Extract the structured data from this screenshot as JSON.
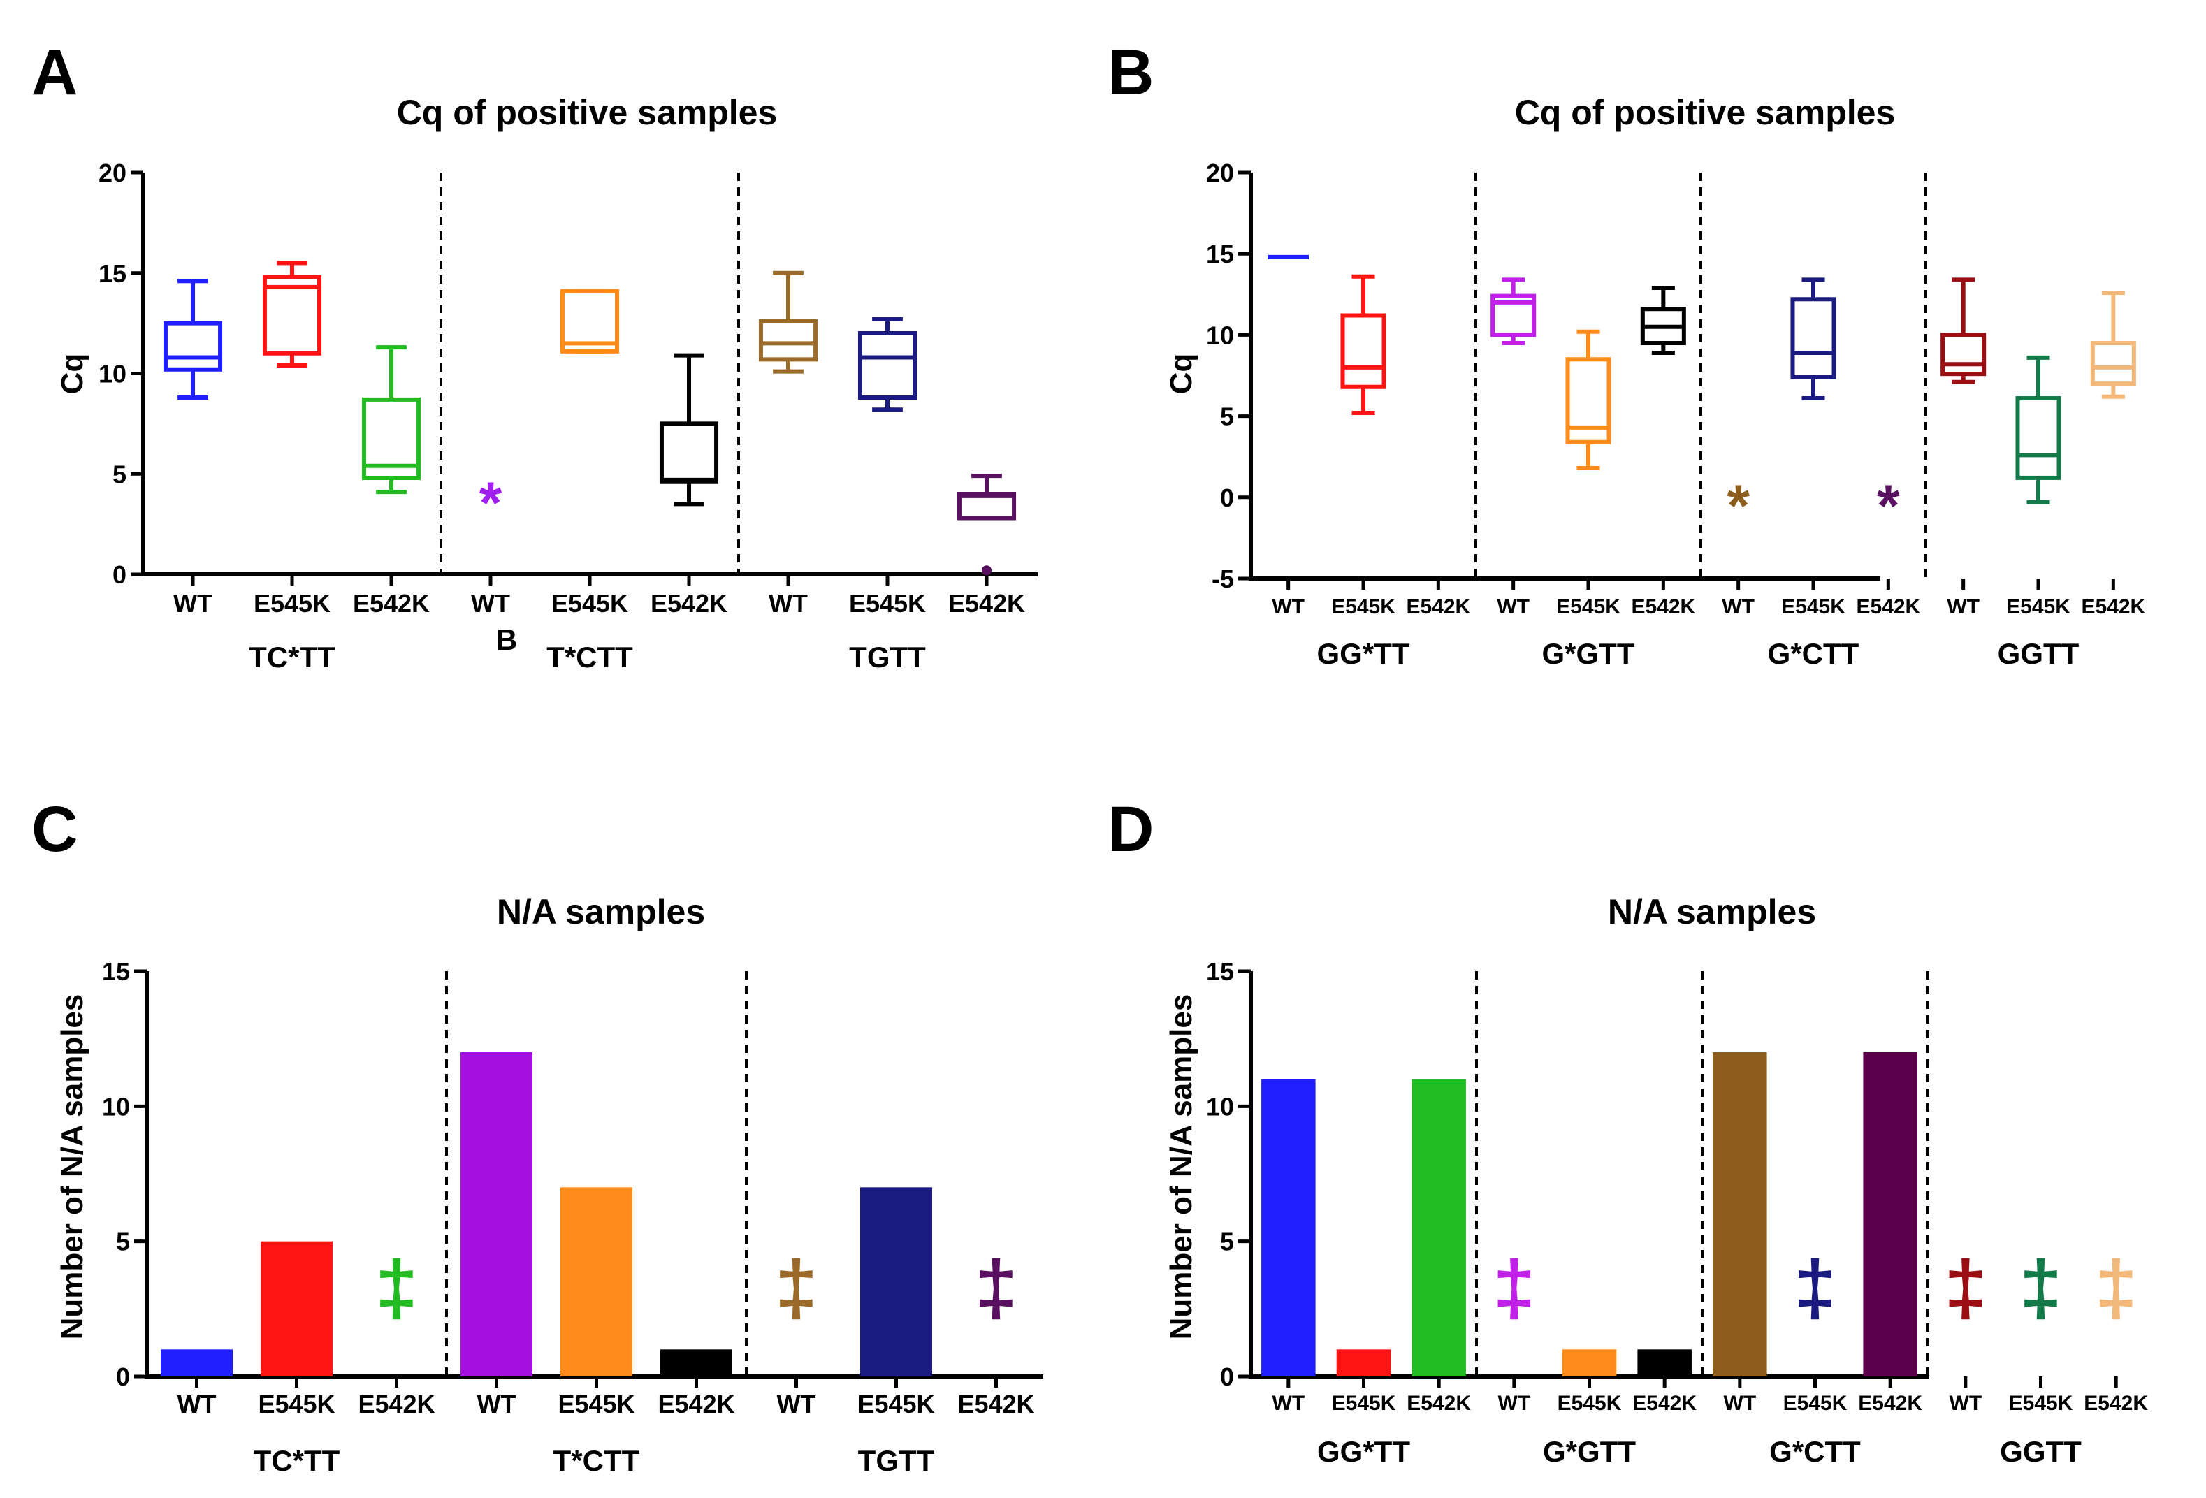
{
  "chart_data": [
    {
      "panel": "A",
      "type": "box",
      "title": "Cq of positive samples",
      "ylabel": "Cq",
      "ylim": [
        0,
        20
      ],
      "yticks": [
        0,
        5,
        10,
        15,
        20
      ],
      "groups": [
        {
          "label": "TC*TT",
          "items": [
            {
              "label": "WT",
              "color": "#1f1fff",
              "box": {
                "min": 8.8,
                "q1": 10.2,
                "median": 10.8,
                "q3": 12.5,
                "max": 14.6
              }
            },
            {
              "label": "E545K",
              "color": "#ff1414",
              "box": {
                "min": 10.4,
                "q1": 11.0,
                "median": 14.3,
                "q3": 14.8,
                "max": 15.5
              }
            },
            {
              "label": "E542K",
              "color": "#22bb22",
              "box": {
                "min": 4.1,
                "q1": 4.8,
                "median": 5.4,
                "q3": 8.7,
                "max": 11.3
              }
            }
          ]
        },
        {
          "label": "T*CTT",
          "items": [
            {
              "label": "WT",
              "color": "#a020f0",
              "marker": {
                "symbol": "*",
                "y": 4.3
              }
            },
            {
              "label": "E545K",
              "color": "#ff8c1a",
              "box": {
                "min": 11.1,
                "q1": 11.1,
                "median": 11.5,
                "q3": 14.1,
                "max": 14.1
              }
            },
            {
              "label": "E542K",
              "color": "#000000",
              "box": {
                "min": 3.5,
                "q1": 4.6,
                "median": 4.7,
                "q3": 7.5,
                "max": 10.9
              }
            }
          ]
        },
        {
          "label": "TGTT",
          "items": [
            {
              "label": "WT",
              "color": "#9a6a2a",
              "box": {
                "min": 10.1,
                "q1": 10.7,
                "median": 11.5,
                "q3": 12.6,
                "max": 15.0
              }
            },
            {
              "label": "E545K",
              "color": "#1a1a80",
              "box": {
                "min": 8.2,
                "q1": 8.8,
                "median": 10.8,
                "q3": 12.0,
                "max": 12.7
              }
            },
            {
              "label": "E542K",
              "color": "#5a1060",
              "box": {
                "min": 2.8,
                "q1": 2.8,
                "median": 3.9,
                "q3": 4.0,
                "max": 4.9
              },
              "outlier": 0.2
            }
          ]
        }
      ],
      "stray_label": "B"
    },
    {
      "panel": "B",
      "type": "box",
      "title": "Cq of positive samples",
      "ylabel": "Cq",
      "ylim": [
        -5,
        20
      ],
      "yticks": [
        -5,
        0,
        5,
        10,
        15,
        20
      ],
      "groups": [
        {
          "label": "GG*TT",
          "items": [
            {
              "label": "WT",
              "color": "#1f1fff",
              "box": {
                "min": 14.8,
                "q1": 14.8,
                "median": 14.8,
                "q3": 14.8,
                "max": 14.8
              }
            },
            {
              "label": "E545K",
              "color": "#ff1414",
              "box": {
                "min": 5.2,
                "q1": 6.8,
                "median": 8.0,
                "q3": 11.2,
                "max": 13.6
              }
            },
            {
              "label": "E542K",
              "color": "#22bb22"
            }
          ]
        },
        {
          "label": "G*GTT",
          "items": [
            {
              "label": "WT",
              "color": "#c020e8",
              "box": {
                "min": 9.5,
                "q1": 10.0,
                "median": 12.0,
                "q3": 12.4,
                "max": 13.4
              }
            },
            {
              "label": "E545K",
              "color": "#ff8c1a",
              "box": {
                "min": 1.8,
                "q1": 3.4,
                "median": 4.3,
                "q3": 8.5,
                "max": 10.2
              }
            },
            {
              "label": "E542K",
              "color": "#000000",
              "box": {
                "min": 8.9,
                "q1": 9.5,
                "median": 10.5,
                "q3": 11.6,
                "max": 12.9
              }
            }
          ]
        },
        {
          "label": "G*CTT",
          "items": [
            {
              "label": "WT",
              "color": "#8e5e1e",
              "marker": {
                "symbol": "*",
                "y": 0.4
              }
            },
            {
              "label": "E545K",
              "color": "#1a1a80",
              "box": {
                "min": 6.1,
                "q1": 7.4,
                "median": 8.9,
                "q3": 12.2,
                "max": 13.4
              }
            },
            {
              "label": "E542K",
              "color": "#5a1060",
              "marker": {
                "symbol": "*",
                "y": 0.4
              }
            }
          ]
        },
        {
          "label": "GGTT",
          "items": [
            {
              "label": "WT",
              "color": "#9b0e14",
              "box": {
                "min": 7.1,
                "q1": 7.6,
                "median": 8.2,
                "q3": 10.0,
                "max": 13.4
              }
            },
            {
              "label": "E545K",
              "color": "#137a4a",
              "box": {
                "min": -0.3,
                "q1": 1.2,
                "median": 2.6,
                "q3": 6.1,
                "max": 8.6
              }
            },
            {
              "label": "E542K",
              "color": "#f2b87a",
              "box": {
                "min": 6.2,
                "q1": 7.0,
                "median": 8.0,
                "q3": 9.5,
                "max": 12.6
              }
            }
          ]
        }
      ]
    },
    {
      "panel": "C",
      "type": "bar",
      "title": "N/A samples",
      "ylabel": "Number of N/A samples",
      "ylim": [
        0,
        15
      ],
      "yticks": [
        0,
        5,
        10,
        15
      ],
      "groups": [
        {
          "label": "TC*TT",
          "items": [
            {
              "label": "WT",
              "color": "#1f1fff",
              "value": 1
            },
            {
              "label": "E545K",
              "color": "#ff1414",
              "value": 5
            },
            {
              "label": "E542K",
              "color": "#22bb22",
              "value": null,
              "marker": "‡"
            }
          ]
        },
        {
          "label": "T*CTT",
          "items": [
            {
              "label": "WT",
              "color": "#a410e0",
              "value": 12
            },
            {
              "label": "E545K",
              "color": "#ff8c1a",
              "value": 7
            },
            {
              "label": "E542K",
              "color": "#000000",
              "value": 1
            }
          ]
        },
        {
          "label": "TGTT",
          "items": [
            {
              "label": "WT",
              "color": "#9a6a2a",
              "value": null,
              "marker": "‡"
            },
            {
              "label": "E545K",
              "color": "#1a1a80",
              "value": 7
            },
            {
              "label": "E542K",
              "color": "#5a1060",
              "value": null,
              "marker": "‡"
            }
          ]
        }
      ]
    },
    {
      "panel": "D",
      "type": "bar",
      "title": "N/A samples",
      "ylabel": "Number of N/A samples",
      "ylim": [
        0,
        15
      ],
      "yticks": [
        0,
        5,
        10,
        15
      ],
      "groups": [
        {
          "label": "GG*TT",
          "items": [
            {
              "label": "WT",
              "color": "#1f1fff",
              "value": 11
            },
            {
              "label": "E545K",
              "color": "#ff1414",
              "value": 1
            },
            {
              "label": "E542K",
              "color": "#22bb22",
              "value": 11
            }
          ]
        },
        {
          "label": "G*GTT",
          "items": [
            {
              "label": "WT",
              "color": "#c020e8",
              "value": null,
              "marker": "‡"
            },
            {
              "label": "E545K",
              "color": "#ff8c1a",
              "value": 1
            },
            {
              "label": "E542K",
              "color": "#000000",
              "value": 1
            }
          ]
        },
        {
          "label": "G*CTT",
          "items": [
            {
              "label": "WT",
              "color": "#8e5e1e",
              "value": 12
            },
            {
              "label": "E545K",
              "color": "#1a1a80",
              "value": null,
              "marker": "‡"
            },
            {
              "label": "E542K",
              "color": "#5a004a",
              "value": 12
            }
          ]
        },
        {
          "label": "GGTT",
          "items": [
            {
              "label": "WT",
              "color": "#9b0e14",
              "value": null,
              "marker": "‡"
            },
            {
              "label": "E545K",
              "color": "#137a4a",
              "value": null,
              "marker": "‡"
            },
            {
              "label": "E542K",
              "color": "#f2b87a",
              "value": null,
              "marker": "‡"
            }
          ]
        }
      ]
    }
  ]
}
